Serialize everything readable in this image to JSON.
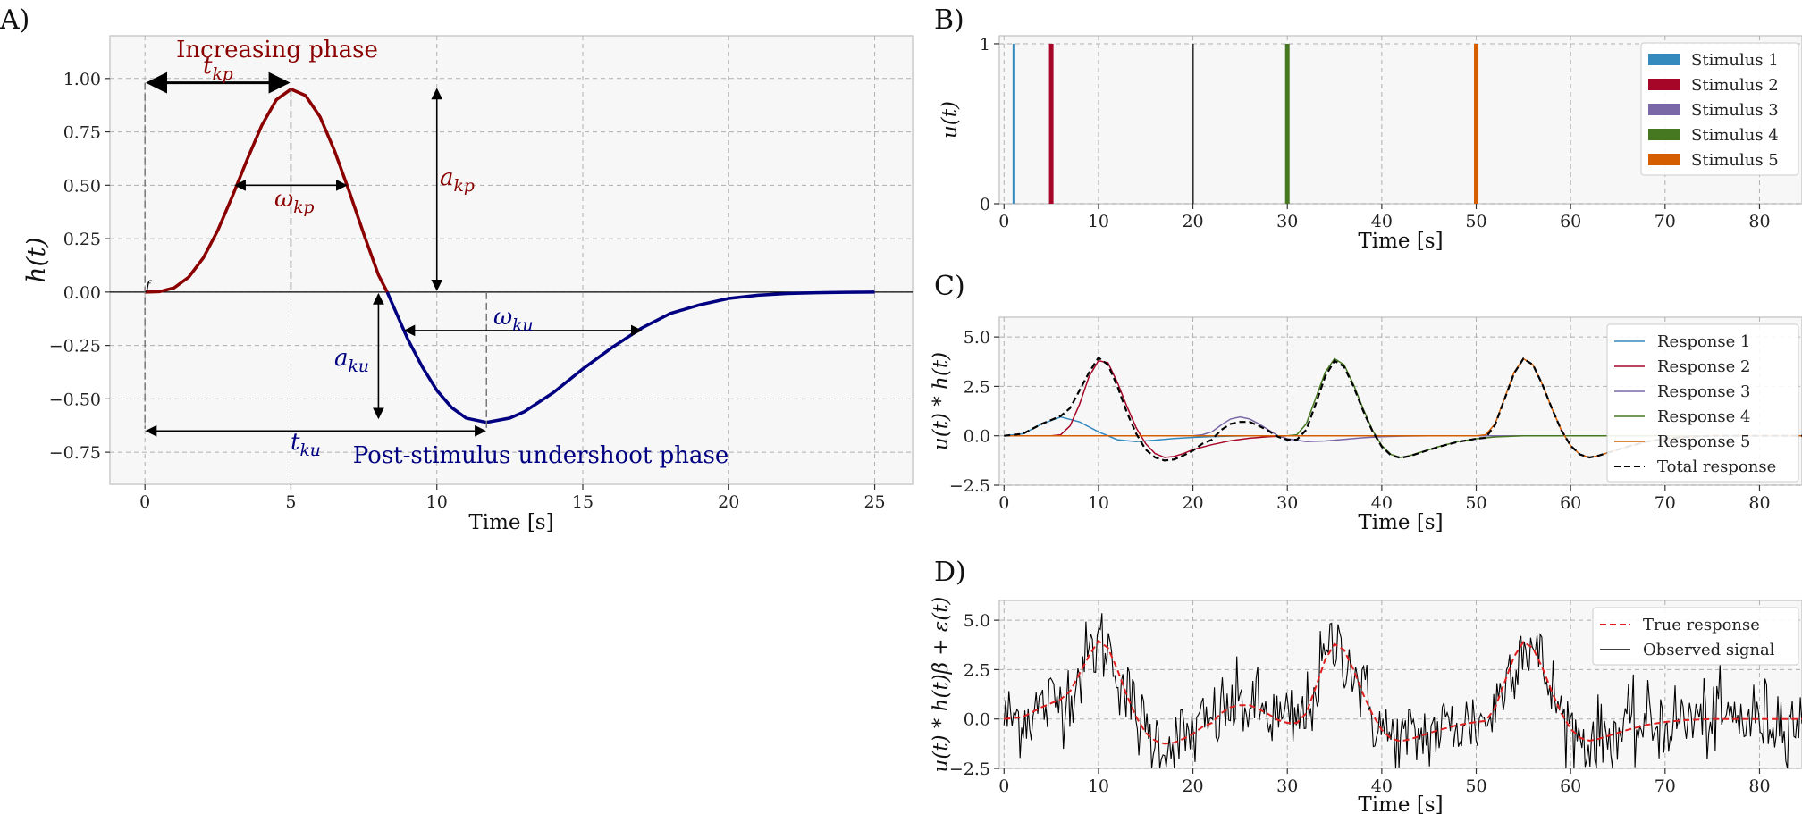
{
  "colors": {
    "increasing": "#8b0000",
    "undershoot": "#000080",
    "stim1": "#348abd",
    "stim2": "#a60628",
    "stim3": "#7a68a6",
    "stim4": "#467821",
    "stim5": "#d55e00",
    "total": "#000000",
    "true_response": "#e02020",
    "observed": "#000000"
  },
  "panel_labels": {
    "A": "A)",
    "B": "B)",
    "C": "C)",
    "D": "D)"
  },
  "annotations": {
    "increasing_phase": "Increasing phase",
    "undershoot_phase": "Post-stimulus undershoot phase",
    "t_kp": "t_kp",
    "omega_kp": "ω_kp",
    "a_kp": "a_kp",
    "omega_ku": "ω_ku",
    "a_ku": "a_ku",
    "t_ku": "t_ku",
    "f": "f"
  },
  "chart_data": [
    {
      "id": "A",
      "type": "line",
      "xlabel": "Time [s]",
      "ylabel": "h(t)",
      "xlim": [
        -1.2,
        26.3
      ],
      "ylim": [
        -0.9,
        1.2
      ],
      "xticks": [
        0,
        5,
        10,
        15,
        20,
        25
      ],
      "yticks": [
        -0.75,
        -0.5,
        -0.25,
        0.0,
        0.25,
        0.5,
        0.75,
        1.0
      ],
      "ytick_labels": [
        "−0.75",
        "−0.50",
        "−0.25",
        "0.00",
        "0.25",
        "0.50",
        "0.75",
        "1.00"
      ],
      "grid": true,
      "series": [
        {
          "phase": "increasing",
          "x": [
            0,
            0.5,
            1,
            1.5,
            2,
            2.5,
            3,
            3.5,
            4,
            4.5,
            5,
            5.5,
            6,
            6.5,
            7,
            7.5,
            8,
            8.3
          ],
          "y": [
            0.0,
            0.002,
            0.02,
            0.07,
            0.16,
            0.29,
            0.45,
            0.62,
            0.78,
            0.9,
            0.95,
            0.92,
            0.82,
            0.66,
            0.47,
            0.27,
            0.08,
            0.0
          ]
        },
        {
          "phase": "undershoot",
          "x": [
            8.3,
            9,
            9.5,
            10,
            10.5,
            11,
            11.7,
            12.5,
            13,
            14,
            15,
            16,
            17,
            18,
            19,
            20,
            21,
            22,
            23,
            24,
            25
          ],
          "y": [
            0.0,
            -0.22,
            -0.35,
            -0.46,
            -0.54,
            -0.59,
            -0.61,
            -0.59,
            -0.56,
            -0.47,
            -0.36,
            -0.26,
            -0.17,
            -0.1,
            -0.06,
            -0.03,
            -0.015,
            -0.007,
            -0.003,
            -0.001,
            0.0
          ]
        }
      ],
      "key_points": {
        "t_kp": 5.0,
        "peak": 0.95,
        "t_ku": 11.7,
        "trough": -0.61
      }
    },
    {
      "id": "B",
      "type": "bar",
      "xlabel": "Time [s]",
      "ylabel": "u(t)",
      "xlim": [
        -0.5,
        84.5
      ],
      "ylim": [
        0,
        1.05
      ],
      "xticks": [
        0,
        10,
        20,
        30,
        40,
        50,
        60,
        70,
        80
      ],
      "yticks": [
        0,
        1
      ],
      "grid": true,
      "legend": "top-right",
      "series": [
        {
          "name": "Stimulus 1",
          "x": [
            1
          ]
        },
        {
          "name": "Stimulus 2",
          "x": [
            5
          ]
        },
        {
          "name": "Stimulus 3",
          "x": [
            20
          ]
        },
        {
          "name": "Stimulus 4",
          "x": [
            30
          ]
        },
        {
          "name": "Stimulus 5",
          "x": [
            50
          ]
        }
      ]
    },
    {
      "id": "C",
      "type": "line",
      "xlabel": "Time [s]",
      "ylabel": "u(t) * h(t)",
      "xlim": [
        -0.5,
        84.5
      ],
      "ylim": [
        -2.5,
        6.0
      ],
      "xticks": [
        0,
        10,
        20,
        30,
        40,
        50,
        60,
        70,
        80
      ],
      "yticks": [
        -2.5,
        0.0,
        2.5,
        5.0
      ],
      "ytick_labels": [
        "−2.5",
        "0.0",
        "2.5",
        "5.0"
      ],
      "grid": true,
      "legend": "top-right",
      "series": [
        {
          "name": "Response 1",
          "x": [
            0,
            2,
            4,
            6,
            8,
            10,
            12,
            14,
            16,
            18,
            20,
            22,
            24,
            26,
            30,
            85
          ],
          "y": [
            0,
            0.1,
            0.6,
            0.95,
            0.7,
            0.2,
            -0.2,
            -0.3,
            -0.22,
            -0.14,
            -0.08,
            -0.04,
            -0.02,
            0,
            0,
            0
          ]
        },
        {
          "name": "Response 2",
          "x": [
            0,
            5,
            6,
            7,
            8,
            9,
            10,
            11,
            12,
            13,
            14,
            15,
            16,
            17,
            18,
            19,
            20,
            22,
            24,
            26,
            28,
            30,
            85
          ],
          "y": [
            0,
            0,
            0.05,
            0.5,
            1.6,
            3.0,
            3.8,
            3.7,
            2.7,
            1.5,
            0.4,
            -0.4,
            -0.9,
            -1.1,
            -1.05,
            -0.9,
            -0.7,
            -0.45,
            -0.25,
            -0.12,
            -0.05,
            0,
            0
          ]
        },
        {
          "name": "Response 3",
          "x": [
            0,
            20,
            21,
            22,
            23,
            24,
            25,
            26,
            27,
            28,
            29,
            30,
            32,
            34,
            36,
            38,
            40,
            42,
            45,
            85
          ],
          "y": [
            0,
            0,
            0.05,
            0.2,
            0.55,
            0.85,
            0.95,
            0.85,
            0.6,
            0.3,
            0.0,
            -0.15,
            -0.3,
            -0.26,
            -0.18,
            -0.1,
            -0.05,
            -0.02,
            0,
            0
          ]
        },
        {
          "name": "Response 4",
          "x": [
            0,
            30,
            31,
            32,
            33,
            34,
            35,
            36,
            37,
            38,
            39,
            40,
            41,
            42,
            43,
            44,
            46,
            48,
            50,
            52,
            55,
            85
          ],
          "y": [
            0,
            0,
            0.05,
            0.6,
            1.9,
            3.2,
            3.9,
            3.6,
            2.6,
            1.4,
            0.3,
            -0.5,
            -0.95,
            -1.1,
            -1.0,
            -0.85,
            -0.55,
            -0.3,
            -0.15,
            -0.06,
            0,
            0
          ]
        },
        {
          "name": "Response 5",
          "x": [
            0,
            50,
            51,
            52,
            53,
            54,
            55,
            56,
            57,
            58,
            59,
            60,
            61,
            62,
            63,
            64,
            66,
            68,
            70,
            72,
            75,
            85
          ],
          "y": [
            0,
            0,
            0.05,
            0.6,
            1.9,
            3.2,
            3.9,
            3.6,
            2.6,
            1.4,
            0.3,
            -0.5,
            -0.95,
            -1.1,
            -1.0,
            -0.85,
            -0.55,
            -0.3,
            -0.15,
            -0.06,
            0,
            0
          ]
        },
        {
          "name": "Total response",
          "x": [
            0,
            2,
            4,
            6,
            7,
            8,
            9,
            10,
            11,
            12,
            13,
            14,
            15,
            16,
            17,
            18,
            19,
            20,
            21,
            22,
            23,
            24,
            25,
            26,
            27,
            28,
            29,
            30,
            31,
            32,
            33,
            34,
            35,
            36,
            37,
            38,
            39,
            40,
            41,
            42,
            43,
            44,
            46,
            48,
            50,
            51,
            52,
            53,
            54,
            55,
            56,
            57,
            58,
            59,
            60,
            61,
            62,
            63,
            64,
            66,
            68,
            70,
            72,
            75,
            85
          ],
          "y": [
            0,
            0.1,
            0.6,
            1.0,
            1.4,
            2.3,
            3.2,
            3.95,
            3.6,
            2.5,
            1.2,
            0.1,
            -0.7,
            -1.1,
            -1.25,
            -1.2,
            -1.0,
            -0.75,
            -0.4,
            -0.2,
            0.3,
            0.6,
            0.7,
            0.7,
            0.5,
            0.25,
            -0.05,
            -0.2,
            -0.2,
            0.3,
            1.6,
            3.0,
            3.8,
            3.5,
            2.5,
            1.3,
            0.25,
            -0.55,
            -1.0,
            -1.12,
            -1.02,
            -0.87,
            -0.56,
            -0.31,
            -0.15,
            -0.1,
            0.55,
            1.85,
            3.15,
            3.9,
            3.6,
            2.6,
            1.4,
            0.3,
            -0.5,
            -0.95,
            -1.1,
            -1.0,
            -0.85,
            -0.55,
            -0.3,
            -0.15,
            -0.06,
            0,
            0
          ]
        }
      ]
    },
    {
      "id": "D",
      "type": "line",
      "xlabel": "Time [s]",
      "ylabel": "u(t) * h(t)β + ε(t)",
      "xlim": [
        -0.5,
        84.5
      ],
      "ylim": [
        -2.5,
        6.0
      ],
      "xticks": [
        0,
        10,
        20,
        30,
        40,
        50,
        60,
        70,
        80
      ],
      "yticks": [
        -2.5,
        0.0,
        2.5,
        5.0
      ],
      "ytick_labels": [
        "−2.5",
        "0.0",
        "2.5",
        "5.0"
      ],
      "grid": true,
      "legend": "top-right",
      "series": [
        {
          "name": "True response",
          "same_as": "C.Total response"
        },
        {
          "name": "Observed signal",
          "noise_sd": 1.0
        }
      ]
    }
  ]
}
